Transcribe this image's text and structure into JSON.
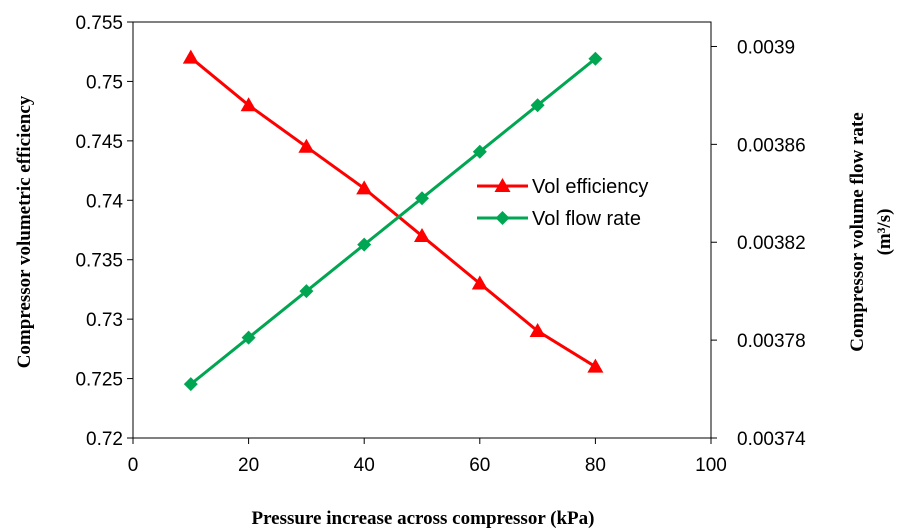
{
  "chart_data": {
    "type": "line",
    "xlabel": "Pressure increase across compressor (kPa)",
    "ylabel_left": "Compressor volumetric efficiency",
    "ylabel_right_line1": "Compressor volume flow rate",
    "ylabel_right_line2": "(m³/s)",
    "xlim": [
      0,
      100
    ],
    "xticks": [
      "0",
      "20",
      "40",
      "60",
      "80",
      "100"
    ],
    "ylim_left": [
      0.72,
      0.755
    ],
    "yticks_left": [
      "0.72",
      "0.725",
      "0.73",
      "0.735",
      "0.74",
      "0.745",
      "0.75",
      "0.755"
    ],
    "ylim_right": [
      0.00374,
      0.00391
    ],
    "yticks_right": [
      "0.00374",
      "0.00378",
      "0.00382",
      "0.00386",
      "0.0039"
    ],
    "grid": false,
    "legend_position": "center-right",
    "series": [
      {
        "name": "Vol efficiency",
        "axis": "left",
        "color": "#ff0000",
        "marker": "triangle",
        "x": [
          10,
          20,
          30,
          40,
          50,
          60,
          70,
          80
        ],
        "values": [
          0.752,
          0.748,
          0.7445,
          0.741,
          0.737,
          0.733,
          0.729,
          0.726
        ]
      },
      {
        "name": "Vol flow rate",
        "axis": "right",
        "color": "#00a651",
        "marker": "diamond",
        "x": [
          10,
          20,
          30,
          40,
          50,
          60,
          70,
          80
        ],
        "values": [
          0.003762,
          0.003781,
          0.0038,
          0.003819,
          0.003838,
          0.003857,
          0.003876,
          0.003895
        ]
      }
    ]
  }
}
